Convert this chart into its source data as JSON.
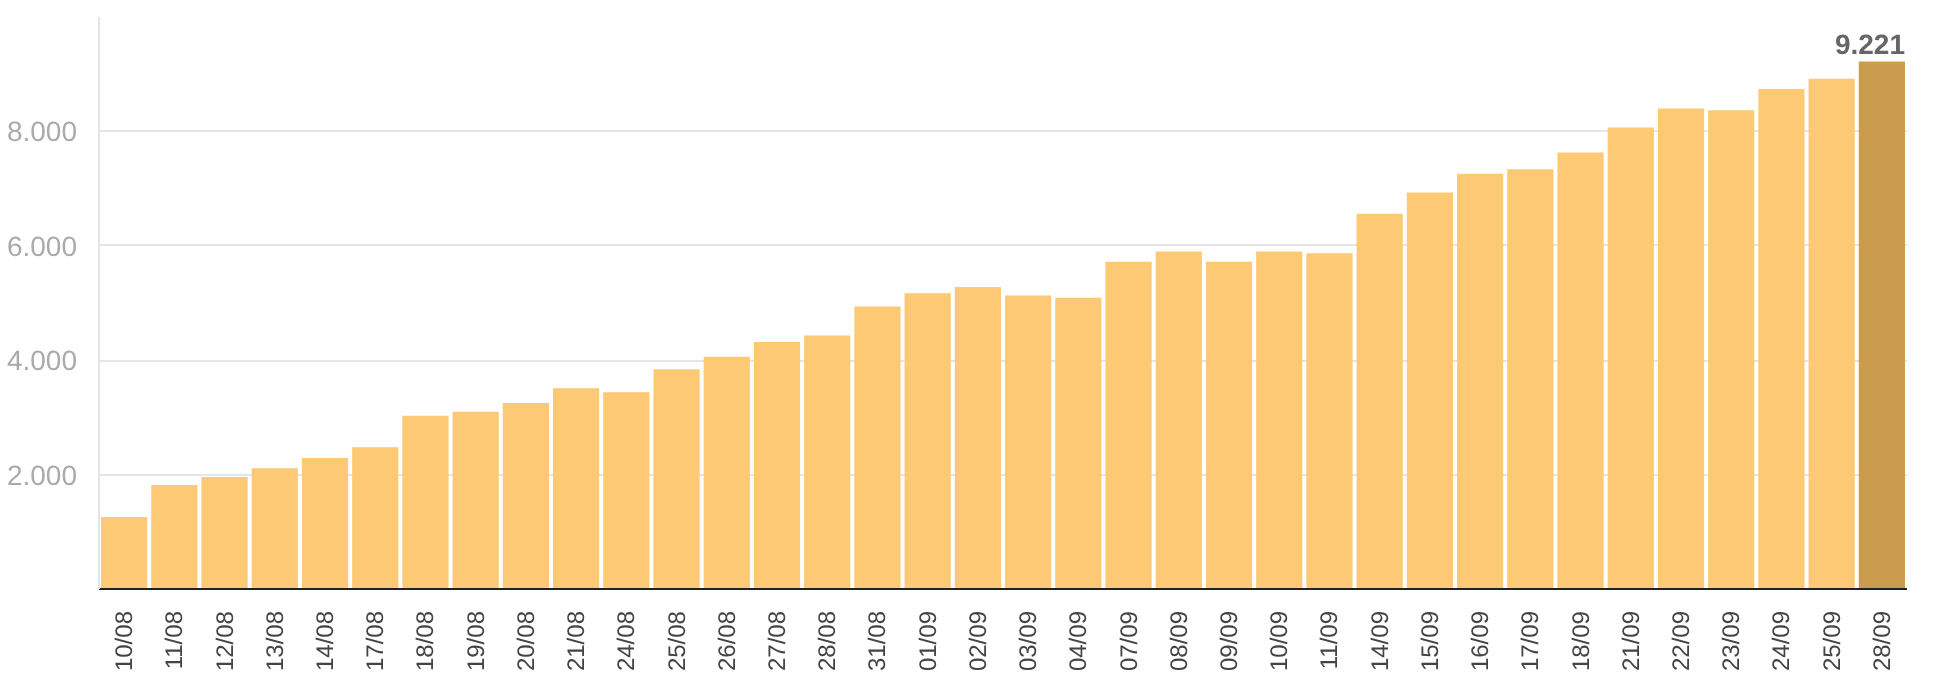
{
  "chart_data": {
    "type": "bar",
    "categories": [
      "10/08",
      "11/08",
      "12/08",
      "13/08",
      "14/08",
      "17/08",
      "18/08",
      "19/08",
      "20/08",
      "21/08",
      "24/08",
      "25/08",
      "26/08",
      "27/08",
      "28/08",
      "31/08",
      "01/09",
      "02/09",
      "03/09",
      "04/09",
      "07/09",
      "08/09",
      "09/09",
      "10/09",
      "11/09",
      "14/09",
      "15/09",
      "16/09",
      "17/09",
      "18/09",
      "21/09",
      "22/09",
      "23/09",
      "24/09",
      "25/09",
      "28/09"
    ],
    "values": [
      1260,
      1820,
      1960,
      2110,
      2290,
      2480,
      3030,
      3100,
      3250,
      3510,
      3440,
      3840,
      4060,
      4320,
      4430,
      4940,
      5170,
      5280,
      5130,
      5090,
      5720,
      5900,
      5720,
      5900,
      5870,
      6560,
      6930,
      7260,
      7340,
      7630,
      8070,
      8400,
      8370,
      8740,
      8920,
      9221
    ],
    "colors": [
      "#fdc975",
      "#fdc975",
      "#fdc975",
      "#fdc975",
      "#fdc975",
      "#fdc975",
      "#fdc975",
      "#fdc975",
      "#fdc975",
      "#fdc975",
      "#fdc975",
      "#fdc975",
      "#fdc975",
      "#fdc975",
      "#fdc975",
      "#fdc975",
      "#fdc975",
      "#fdc975",
      "#fdc975",
      "#fdc975",
      "#fdc975",
      "#fdc975",
      "#fdc975",
      "#fdc975",
      "#fdc975",
      "#fdc975",
      "#fdc975",
      "#fdc975",
      "#fdc975",
      "#fdc975",
      "#fdc975",
      "#fdc975",
      "#fdc975",
      "#fdc975",
      "#fdc975",
      "#cc9c4e"
    ],
    "value_labels": [
      null,
      null,
      null,
      null,
      null,
      null,
      null,
      null,
      null,
      null,
      null,
      null,
      null,
      null,
      null,
      null,
      null,
      null,
      null,
      null,
      null,
      null,
      null,
      null,
      null,
      null,
      null,
      null,
      null,
      null,
      null,
      null,
      null,
      null,
      null,
      "9.221"
    ],
    "ylim": [
      0,
      10000
    ],
    "yticks": [
      {
        "value": 2000,
        "label": "2.000"
      },
      {
        "value": 4000,
        "label": "4.000"
      },
      {
        "value": 6000,
        "label": "6.000"
      },
      {
        "value": 8000,
        "label": "8.000"
      }
    ],
    "grid": "y"
  }
}
